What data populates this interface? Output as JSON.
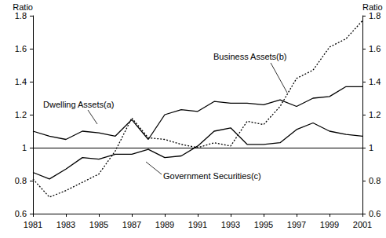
{
  "chart_data": {
    "type": "line",
    "y_label": "Ratio",
    "y2_label": "Ratio",
    "x": [
      1981,
      1982,
      1983,
      1984,
      1985,
      1986,
      1987,
      1988,
      1989,
      1990,
      1991,
      1992,
      1993,
      1994,
      1995,
      1996,
      1997,
      1998,
      1999,
      2000,
      2001
    ],
    "xlim": [
      1981,
      2001
    ],
    "xticks": [
      1981,
      1983,
      1985,
      1987,
      1989,
      1991,
      1993,
      1995,
      1997,
      1999,
      2001
    ],
    "ylim": [
      0.6,
      1.8
    ],
    "yticks": [
      0.6,
      0.8,
      1,
      1.2,
      1.4,
      1.6,
      1.8
    ],
    "y2lim": [
      0.6,
      1.8
    ],
    "y2ticks": [
      0.6,
      0.8,
      1,
      1.2,
      1.4,
      1.6,
      1.8
    ],
    "reference_line": {
      "y": 1
    },
    "grid": false,
    "series": [
      {
        "name": "Dwelling Assets(a)",
        "color": "#000000",
        "line_style": "solid",
        "values": [
          1.1,
          1.07,
          1.05,
          1.1,
          1.09,
          1.07,
          1.17,
          1.05,
          1.2,
          1.23,
          1.22,
          1.28,
          1.27,
          1.27,
          1.26,
          1.29,
          1.25,
          1.3,
          1.31,
          1.37,
          1.37
        ]
      },
      {
        "name": "Business Assets(b)",
        "color": "#000000",
        "line_style": "dotted",
        "values": [
          0.81,
          0.7,
          0.74,
          0.79,
          0.84,
          0.98,
          1.18,
          1.06,
          1.05,
          1.02,
          1.0,
          1.03,
          1.01,
          1.16,
          1.14,
          1.25,
          1.42,
          1.47,
          1.61,
          1.66,
          1.77
        ]
      },
      {
        "name": "Government Securities(c)",
        "color": "#000000",
        "line_style": "solid",
        "values": [
          0.85,
          0.81,
          0.87,
          0.94,
          0.93,
          0.96,
          0.96,
          0.99,
          0.94,
          0.95,
          1.01,
          1.1,
          1.12,
          1.02,
          1.02,
          1.03,
          1.11,
          1.15,
          1.1,
          1.08,
          1.07
        ]
      }
    ]
  }
}
